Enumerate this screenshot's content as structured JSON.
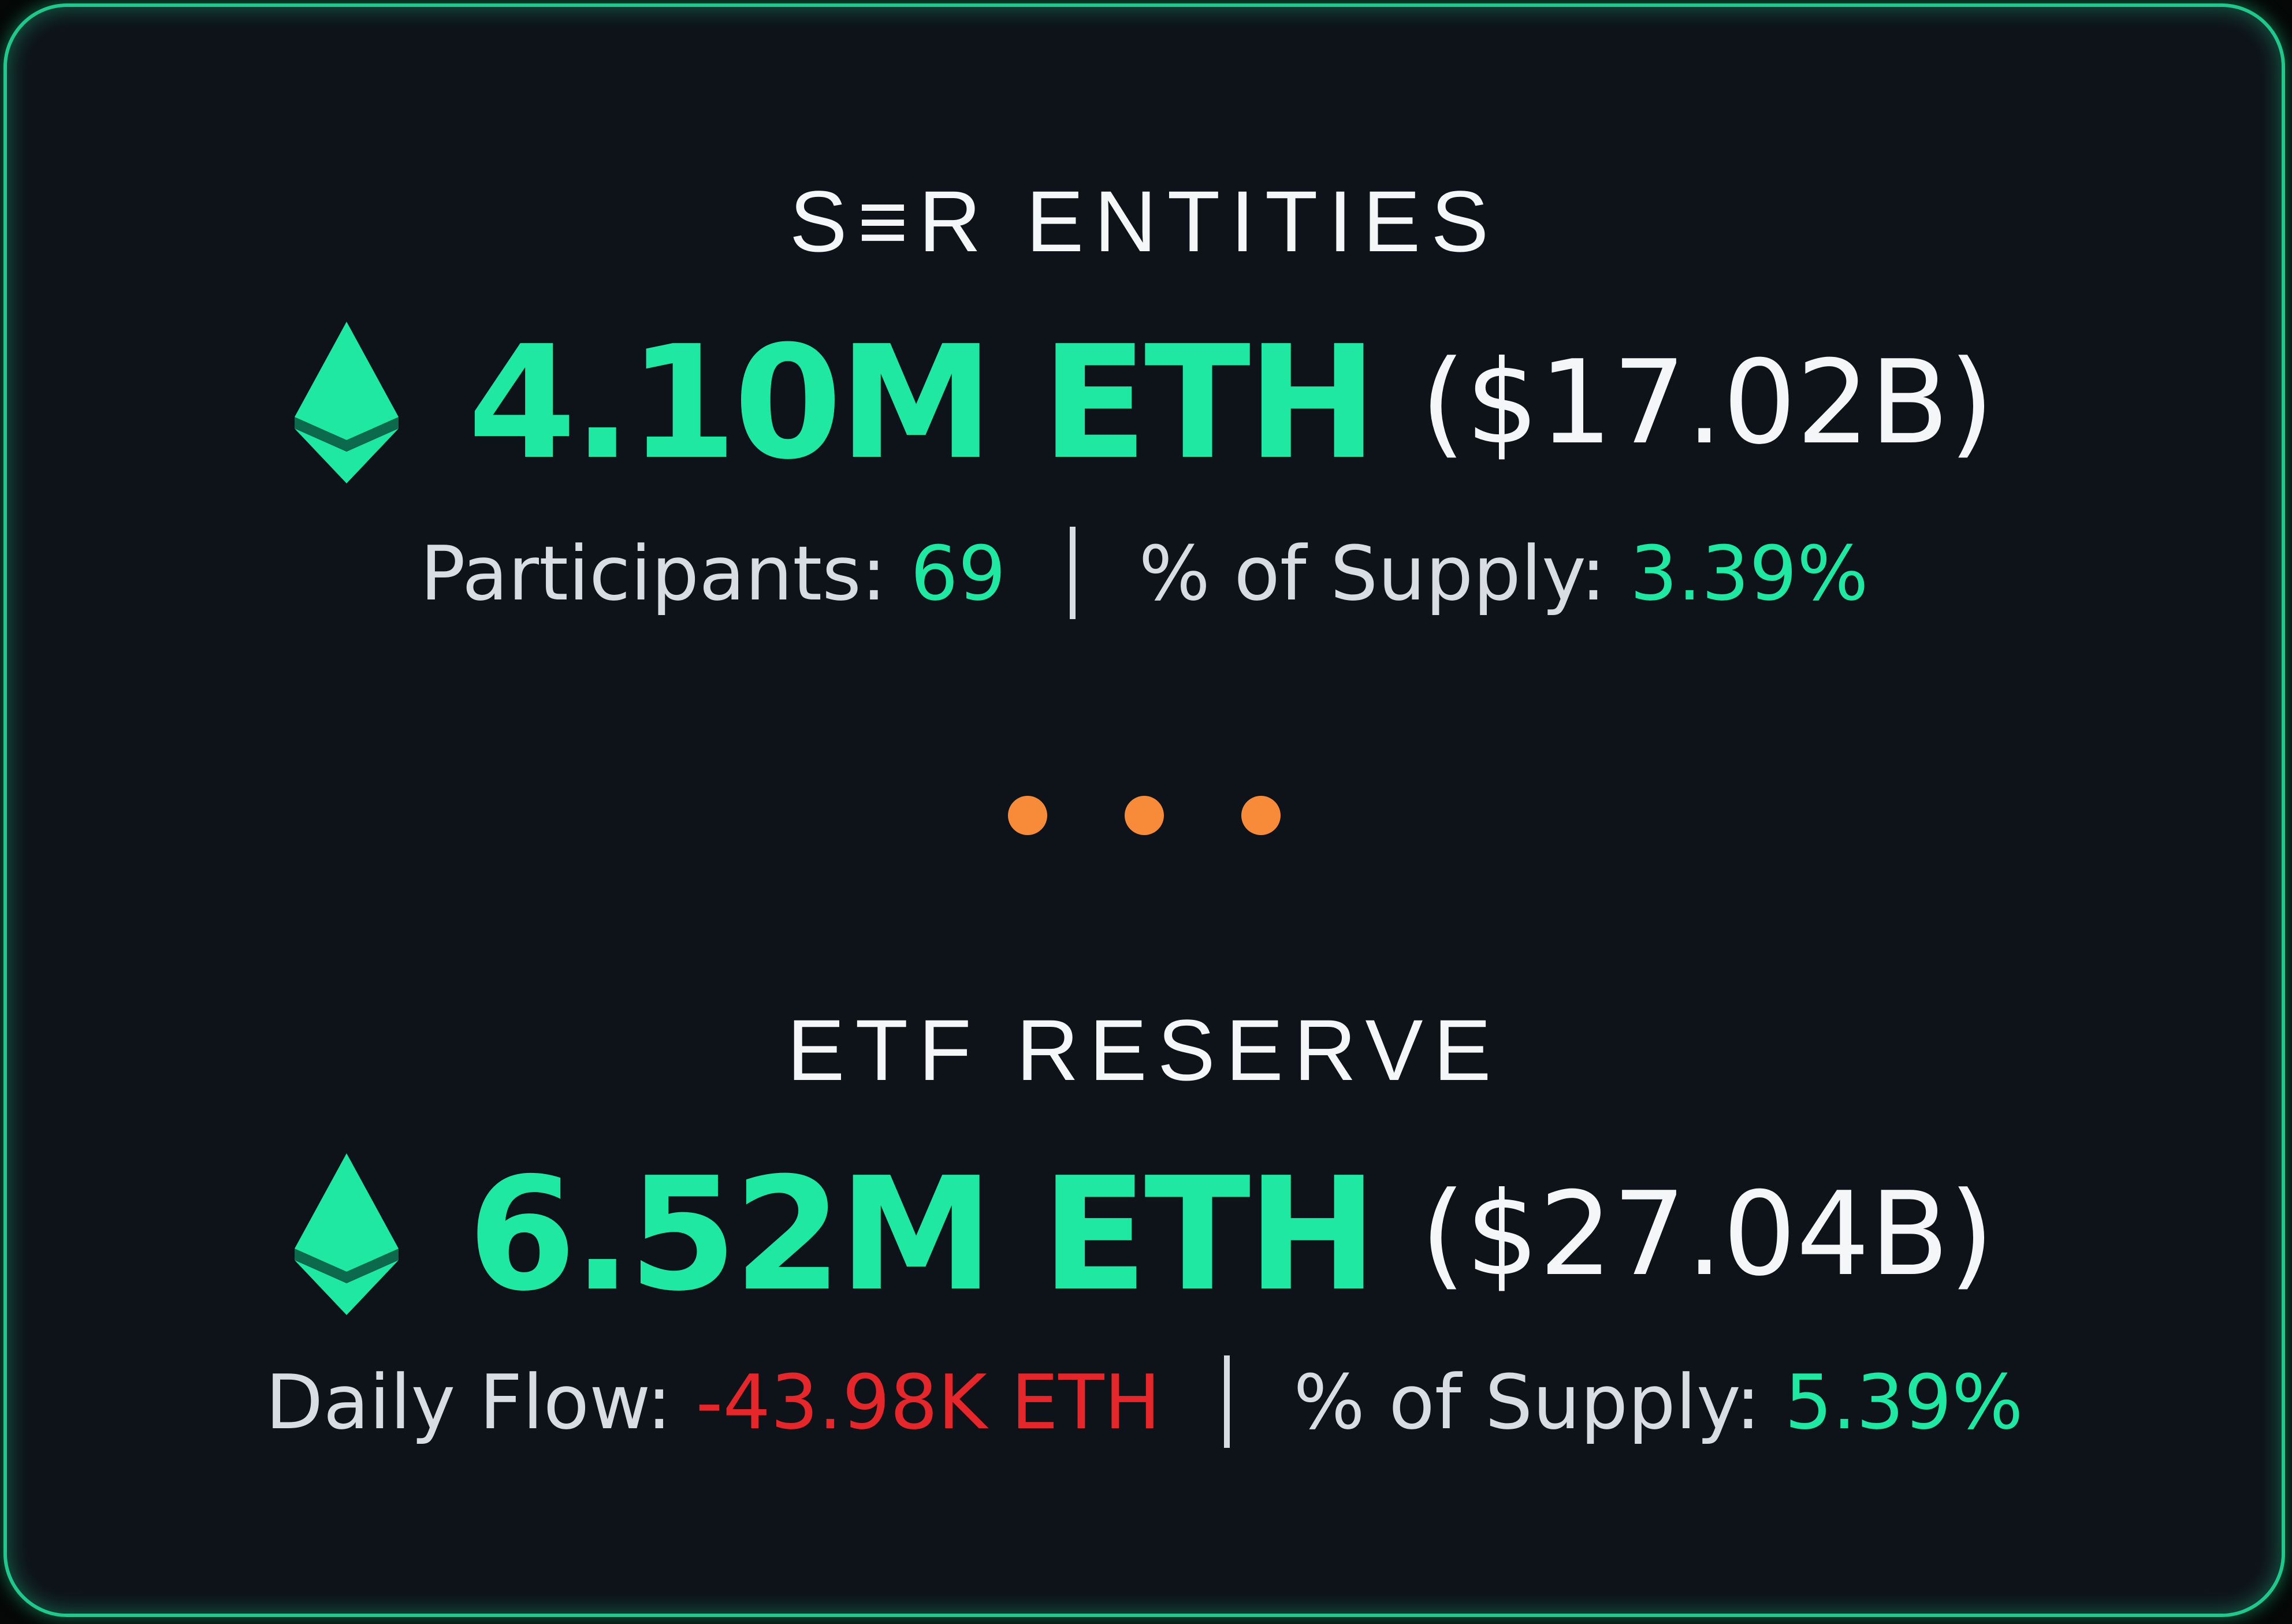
{
  "colors": {
    "accent": "#1ee8a2",
    "border": "#1fc98c",
    "background": "#0e1319",
    "negative": "#e5262b",
    "dots": "#f88b3a",
    "text": "#f4f6f8"
  },
  "sections": [
    {
      "title": "S≡R ENTITIES",
      "icon": "ethereum-icon",
      "amount": "4.10M ETH",
      "usd": "($17.02B)",
      "stat1_label": "Participants: ",
      "stat1_value": "69",
      "stat2_label": "% of Supply: ",
      "stat2_value": "3.39%"
    },
    {
      "title": "ETF RESERVE",
      "icon": "ethereum-icon",
      "amount": "6.52M ETH",
      "usd": "($27.04B)",
      "stat1_label": "Daily Flow: ",
      "stat1_value": "-43.98K ETH",
      "stat2_label": "% of Supply: ",
      "stat2_value": "5.39%"
    }
  ],
  "divider_icon": "more-dots-icon"
}
